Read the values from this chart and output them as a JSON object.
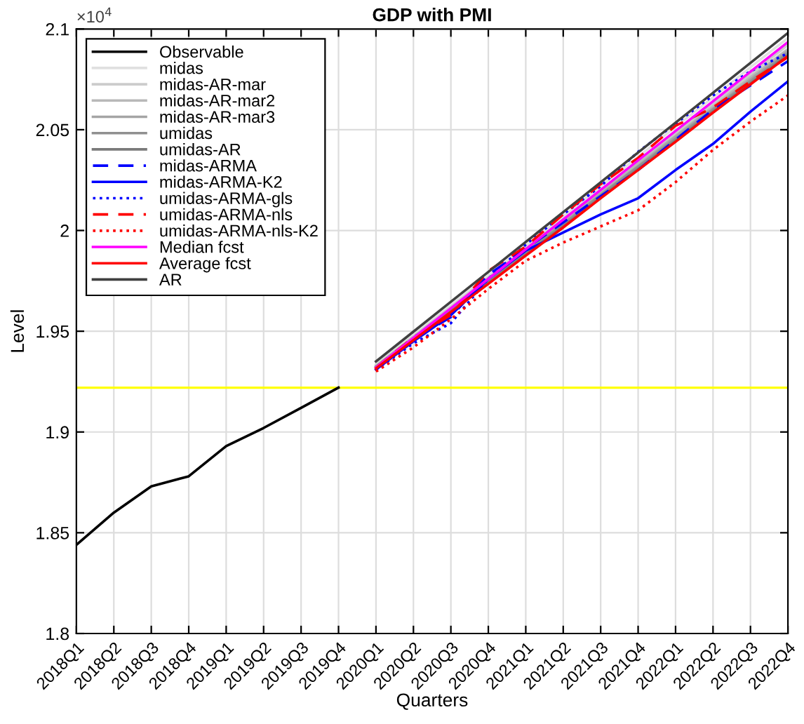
{
  "chart_data": {
    "type": "line",
    "title": "GDP with PMI",
    "xlabel": "Quarters",
    "ylabel": "Level",
    "annotations": [
      "×10$^{4}$"
    ],
    "categories": [
      "2018Q1",
      "2018Q2",
      "2018Q3",
      "2018Q4",
      "2019Q1",
      "2019Q2",
      "2019Q3",
      "2019Q4",
      "2020Q1",
      "2020Q2",
      "2020Q3",
      "2020Q4",
      "2021Q1",
      "2021Q2",
      "2021Q3",
      "2021Q4",
      "2022Q1",
      "2022Q2",
      "2022Q3",
      "2022Q4"
    ],
    "ylim": [
      1.8,
      2.1
    ],
    "yticks": [
      1.8,
      1.85,
      1.9,
      1.95,
      2,
      2.05,
      2.1
    ],
    "grid": true,
    "legend": "top left",
    "ref_lines": [
      {
        "axis": "y",
        "value": 1.922,
        "color": "#ffff00"
      }
    ],
    "series": [
      {
        "name": "Observable",
        "color": "#000000",
        "line_style": "solid",
        "values": [
          1.844,
          1.86,
          1.873,
          1.878,
          1.893,
          1.902,
          1.912,
          1.922,
          null,
          null,
          null,
          null,
          null,
          null,
          null,
          null,
          null,
          null,
          null,
          null
        ]
      },
      {
        "name": "midas",
        "color": "#e0e0e0",
        "line_style": "solid",
        "values": [
          null,
          null,
          null,
          null,
          null,
          null,
          null,
          null,
          1.9335,
          1.948,
          1.963,
          1.9775,
          1.9925,
          2.007,
          2.022,
          2.0365,
          2.0515,
          2.066,
          2.081,
          2.0955
        ]
      },
      {
        "name": "midas-AR-mar",
        "color": "#cccccc",
        "line_style": "solid",
        "values": [
          null,
          null,
          null,
          null,
          null,
          null,
          null,
          null,
          1.933,
          1.9475,
          1.962,
          1.9765,
          1.991,
          2.0055,
          2.0195,
          2.034,
          2.0485,
          2.063,
          2.0775,
          2.092
        ]
      },
      {
        "name": "midas-AR-mar2",
        "color": "#b8b8b8",
        "line_style": "solid",
        "values": [
          null,
          null,
          null,
          null,
          null,
          null,
          null,
          null,
          1.9325,
          1.947,
          1.961,
          1.9755,
          1.99,
          2.0045,
          2.0185,
          2.033,
          2.047,
          2.0615,
          2.076,
          2.09
        ]
      },
      {
        "name": "midas-AR-mar3",
        "color": "#a4a4a4",
        "line_style": "solid",
        "values": [
          null,
          null,
          null,
          null,
          null,
          null,
          null,
          null,
          1.9325,
          1.9465,
          1.961,
          1.975,
          1.9895,
          2.0035,
          2.018,
          2.032,
          2.0465,
          2.0605,
          2.075,
          2.089
        ]
      },
      {
        "name": "umidas",
        "color": "#909090",
        "line_style": "solid",
        "values": [
          null,
          null,
          null,
          null,
          null,
          null,
          null,
          null,
          1.932,
          1.946,
          1.9605,
          1.9745,
          1.989,
          2.003,
          2.0175,
          2.0315,
          2.0455,
          2.06,
          2.074,
          2.088
        ]
      },
      {
        "name": "umidas-AR",
        "color": "#7a7a7a",
        "line_style": "solid",
        "values": [
          null,
          null,
          null,
          null,
          null,
          null,
          null,
          null,
          1.932,
          1.946,
          1.96,
          1.974,
          1.988,
          2.002,
          2.0165,
          2.0305,
          2.0445,
          2.059,
          2.073,
          2.087
        ]
      },
      {
        "name": "midas-ARMA",
        "color": "#0000ff",
        "line_style": "dashed",
        "values": [
          null,
          null,
          null,
          null,
          null,
          null,
          null,
          null,
          1.932,
          1.946,
          1.957,
          1.978,
          1.991,
          2.004,
          2.017,
          2.03,
          2.045,
          2.06,
          2.072,
          2.084
        ]
      },
      {
        "name": "midas-ARMA-K2",
        "color": "#0000ff",
        "line_style": "solid",
        "values": [
          null,
          null,
          null,
          null,
          null,
          null,
          null,
          null,
          1.931,
          1.945,
          1.958,
          1.976,
          1.99,
          1.999,
          2.008,
          2.016,
          2.03,
          2.043,
          2.059,
          2.074
        ]
      },
      {
        "name": "umidas-ARMA-gls",
        "color": "#0000ff",
        "line_style": "dotted",
        "values": [
          null,
          null,
          null,
          null,
          null,
          null,
          null,
          null,
          1.931,
          1.944,
          1.954,
          1.976,
          1.993,
          2.008,
          2.022,
          2.039,
          2.053,
          2.067,
          2.079,
          2.088
        ]
      },
      {
        "name": "umidas-ARMA-nls",
        "color": "#ff0000",
        "line_style": "dashed",
        "values": [
          null,
          null,
          null,
          null,
          null,
          null,
          null,
          null,
          1.932,
          1.947,
          1.958,
          1.98,
          1.992,
          2.008,
          2.023,
          2.036,
          2.052,
          2.061,
          2.074,
          2.086
        ]
      },
      {
        "name": "umidas-ARMA-nls-K2",
        "color": "#ff0000",
        "line_style": "dotted",
        "values": [
          null,
          null,
          null,
          null,
          null,
          null,
          null,
          null,
          1.93,
          1.942,
          1.956,
          1.971,
          1.985,
          1.994,
          2.002,
          2.01,
          2.024,
          2.04,
          2.054,
          2.067
        ]
      },
      {
        "name": "Median fcst",
        "color": "#ff00ff",
        "line_style": "solid",
        "values": [
          null,
          null,
          null,
          null,
          null,
          null,
          null,
          null,
          1.932,
          1.9467,
          1.9614,
          1.976,
          1.9907,
          2.0054,
          2.0201,
          2.0348,
          2.0494,
          2.0641,
          2.0788,
          2.0935
        ]
      },
      {
        "name": "Average fcst",
        "color": "#ff0000",
        "line_style": "solid",
        "values": [
          null,
          null,
          null,
          null,
          null,
          null,
          null,
          null,
          1.9315,
          1.9455,
          1.9595,
          1.9735,
          1.9875,
          2.0015,
          2.016,
          2.03,
          2.044,
          2.0585,
          2.0725,
          2.0865
        ]
      },
      {
        "name": "AR",
        "color": "#404040",
        "line_style": "solid",
        "values": [
          null,
          null,
          null,
          null,
          null,
          null,
          null,
          null,
          1.935,
          1.9498,
          1.9646,
          1.9794,
          1.9943,
          2.0091,
          2.0239,
          2.0387,
          2.0535,
          2.0683,
          2.0832,
          2.098
        ]
      }
    ]
  }
}
